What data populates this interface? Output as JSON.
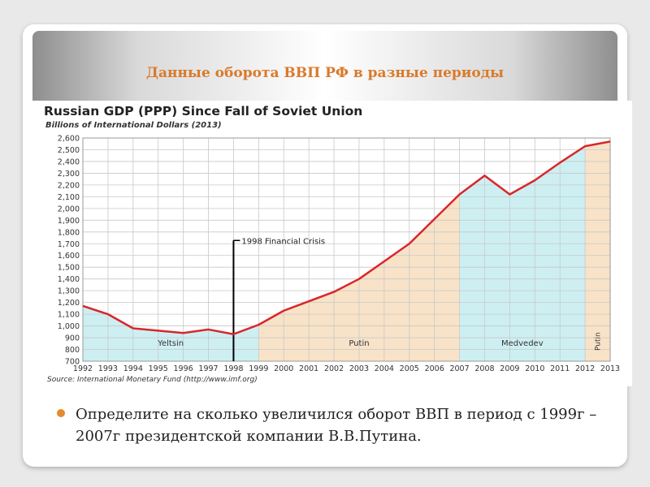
{
  "slide": {
    "title": "Данные оборота ВВП РФ в разные периоды",
    "bullet": "Определите на сколько увеличился оборот ВВП в период с 1999г – 2007г президентской компании В.В.Путина."
  },
  "chart_data": {
    "type": "line",
    "title": "Russian GDP (PPP) Since Fall of Soviet Union",
    "subtitle": "Billions of International Dollars (2013)",
    "source": "Source: International Monetary Fund (http://www.imf.org)",
    "xlabel": "",
    "ylabel": "",
    "x": [
      "1992",
      "1993",
      "1994",
      "1995",
      "1996",
      "1997",
      "1998",
      "1999",
      "2000",
      "2001",
      "2002",
      "2003",
      "2004",
      "2005",
      "2006",
      "2007",
      "2008",
      "2009",
      "2010",
      "2011",
      "2012",
      "2013"
    ],
    "series": [
      {
        "values": [
          1170,
          1100,
          980,
          960,
          940,
          970,
          930,
          1010,
          1130,
          1210,
          1290,
          1400,
          1550,
          1700,
          1910,
          2120,
          2280,
          2120,
          2240,
          2390,
          2530,
          2570
        ]
      }
    ],
    "ylim": [
      700,
      2600
    ],
    "yticks": [
      "700",
      "800",
      "900",
      "1,000",
      "1,100",
      "1,200",
      "1,300",
      "1,400",
      "1,500",
      "1,600",
      "1,700",
      "1,800",
      "1,900",
      "2,000",
      "2,100",
      "2,200",
      "2,300",
      "2,400",
      "2,500",
      "2,600"
    ],
    "grid": true,
    "periods": [
      {
        "label": "Yeltsin",
        "start": "1992",
        "end": "1999",
        "color": "#cdeff2"
      },
      {
        "label": "Putin",
        "start": "1999",
        "end": "2007",
        "color": "#f8e3c8"
      },
      {
        "label": "Medvedev",
        "start": "2007",
        "end": "2012",
        "color": "#cdeff2"
      },
      {
        "label": "Putin",
        "start": "2012",
        "end": "2013",
        "color": "#f8e3c8"
      }
    ],
    "annotation": {
      "label": "1998 Financial Crisis",
      "x": "1998"
    },
    "line_color": "#d9262b"
  }
}
